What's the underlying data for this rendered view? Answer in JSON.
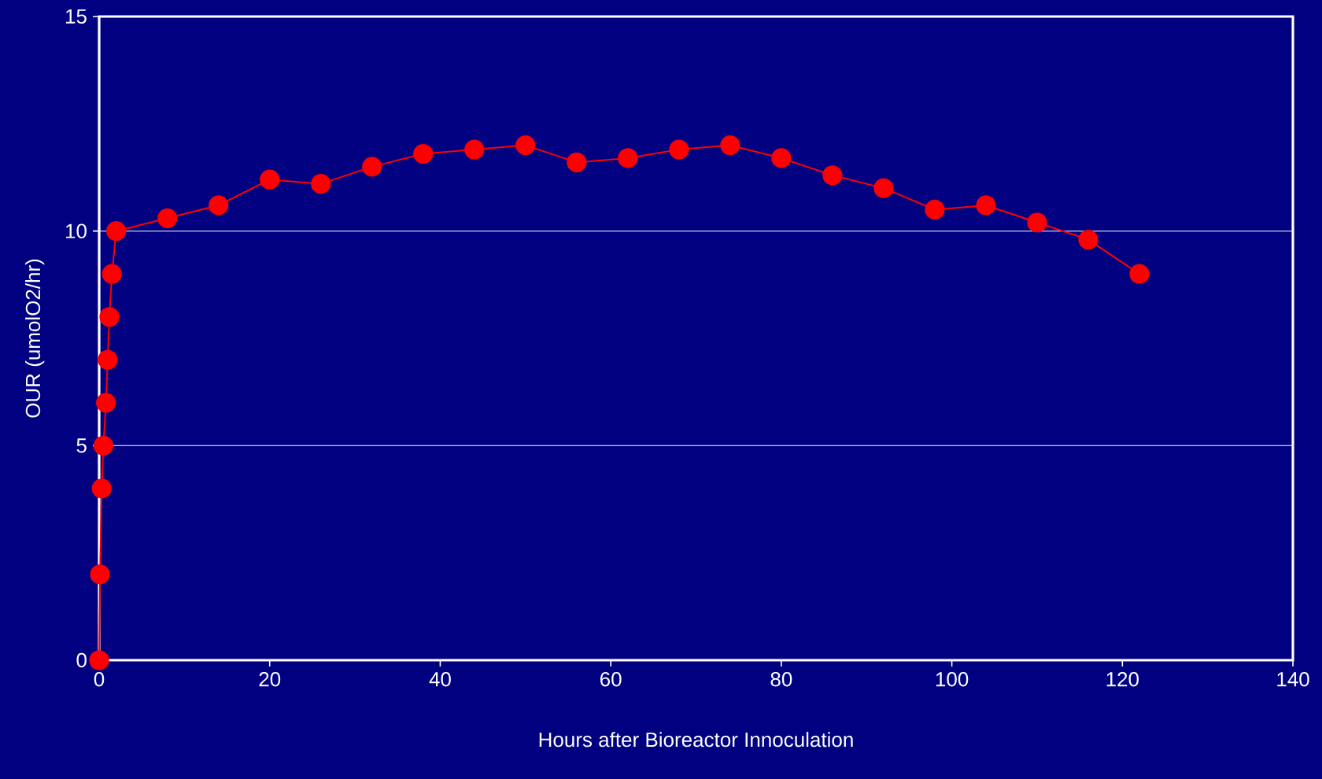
{
  "chart_data": {
    "type": "line",
    "xlabel": "Hours after Bioreactor Innoculation",
    "ylabel": "OUR (umolO2/hr)",
    "x": [
      0,
      0.1,
      0.3,
      0.5,
      0.8,
      1.0,
      1.2,
      1.5,
      2,
      8,
      14,
      20,
      26,
      32,
      38,
      44,
      50,
      56,
      62,
      68,
      74,
      80,
      86,
      92,
      98,
      104,
      110,
      116,
      122
    ],
    "series": [
      {
        "color": "#ff0000",
        "values": [
          0,
          2.0,
          4.0,
          5.0,
          6.0,
          7.0,
          8.0,
          9.0,
          10.0,
          10.3,
          10.6,
          11.2,
          11.1,
          11.5,
          11.8,
          11.9,
          12.0,
          11.6,
          11.7,
          11.9,
          12.0,
          11.7,
          11.3,
          11.0,
          10.5,
          10.6,
          10.2,
          9.8,
          9.0
        ]
      }
    ],
    "xlim": [
      0,
      140
    ],
    "xticks": [
      0,
      20,
      40,
      60,
      80,
      100,
      120,
      140
    ],
    "ylim": [
      0,
      15
    ],
    "yticks": [
      0,
      5,
      10,
      15
    ],
    "grid": "y",
    "marker": "circle",
    "line_style": "solid"
  }
}
